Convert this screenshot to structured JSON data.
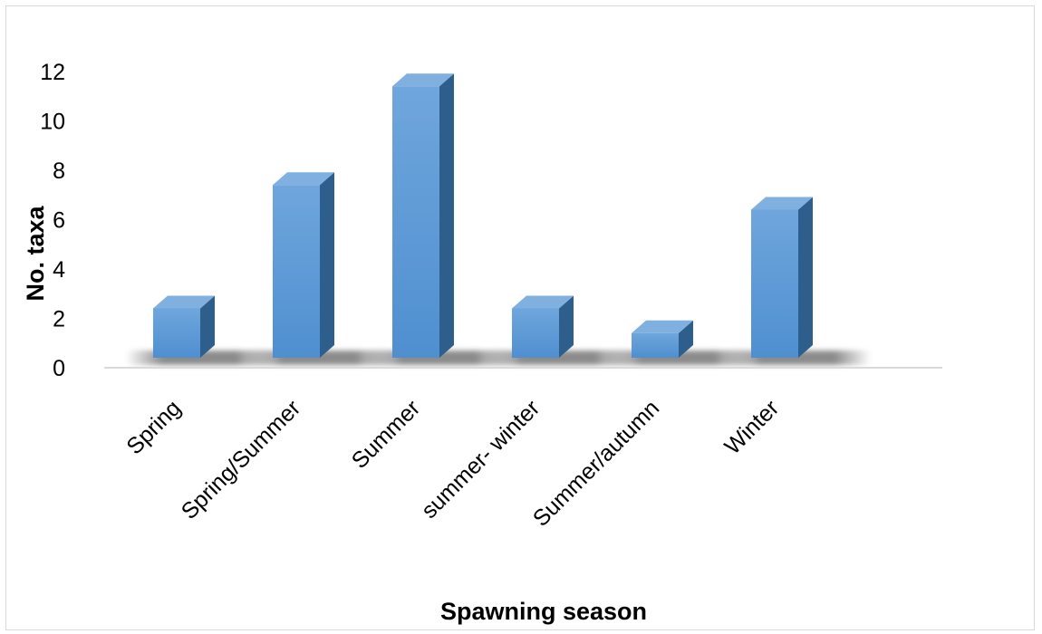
{
  "chart_data": {
    "type": "bar",
    "style": "3d-column",
    "categories": [
      "Spring",
      "Spring/Summer",
      "Summer",
      "summer- winter",
      "Summer/autumn",
      "Winter"
    ],
    "values": [
      2,
      7,
      11,
      2,
      1,
      6
    ],
    "title": "",
    "xlabel": "Spawning season",
    "ylabel": "No. taxa",
    "ylim": [
      0,
      12
    ],
    "yticks": [
      "0",
      "2",
      "4",
      "6",
      "8",
      "10",
      "12"
    ],
    "grid": false,
    "legend": "none",
    "colors": {
      "front": "#5b9bd5",
      "side": "#2e5f8c",
      "top": "#7fb0e0",
      "axis": "#d9d9d9"
    }
  }
}
